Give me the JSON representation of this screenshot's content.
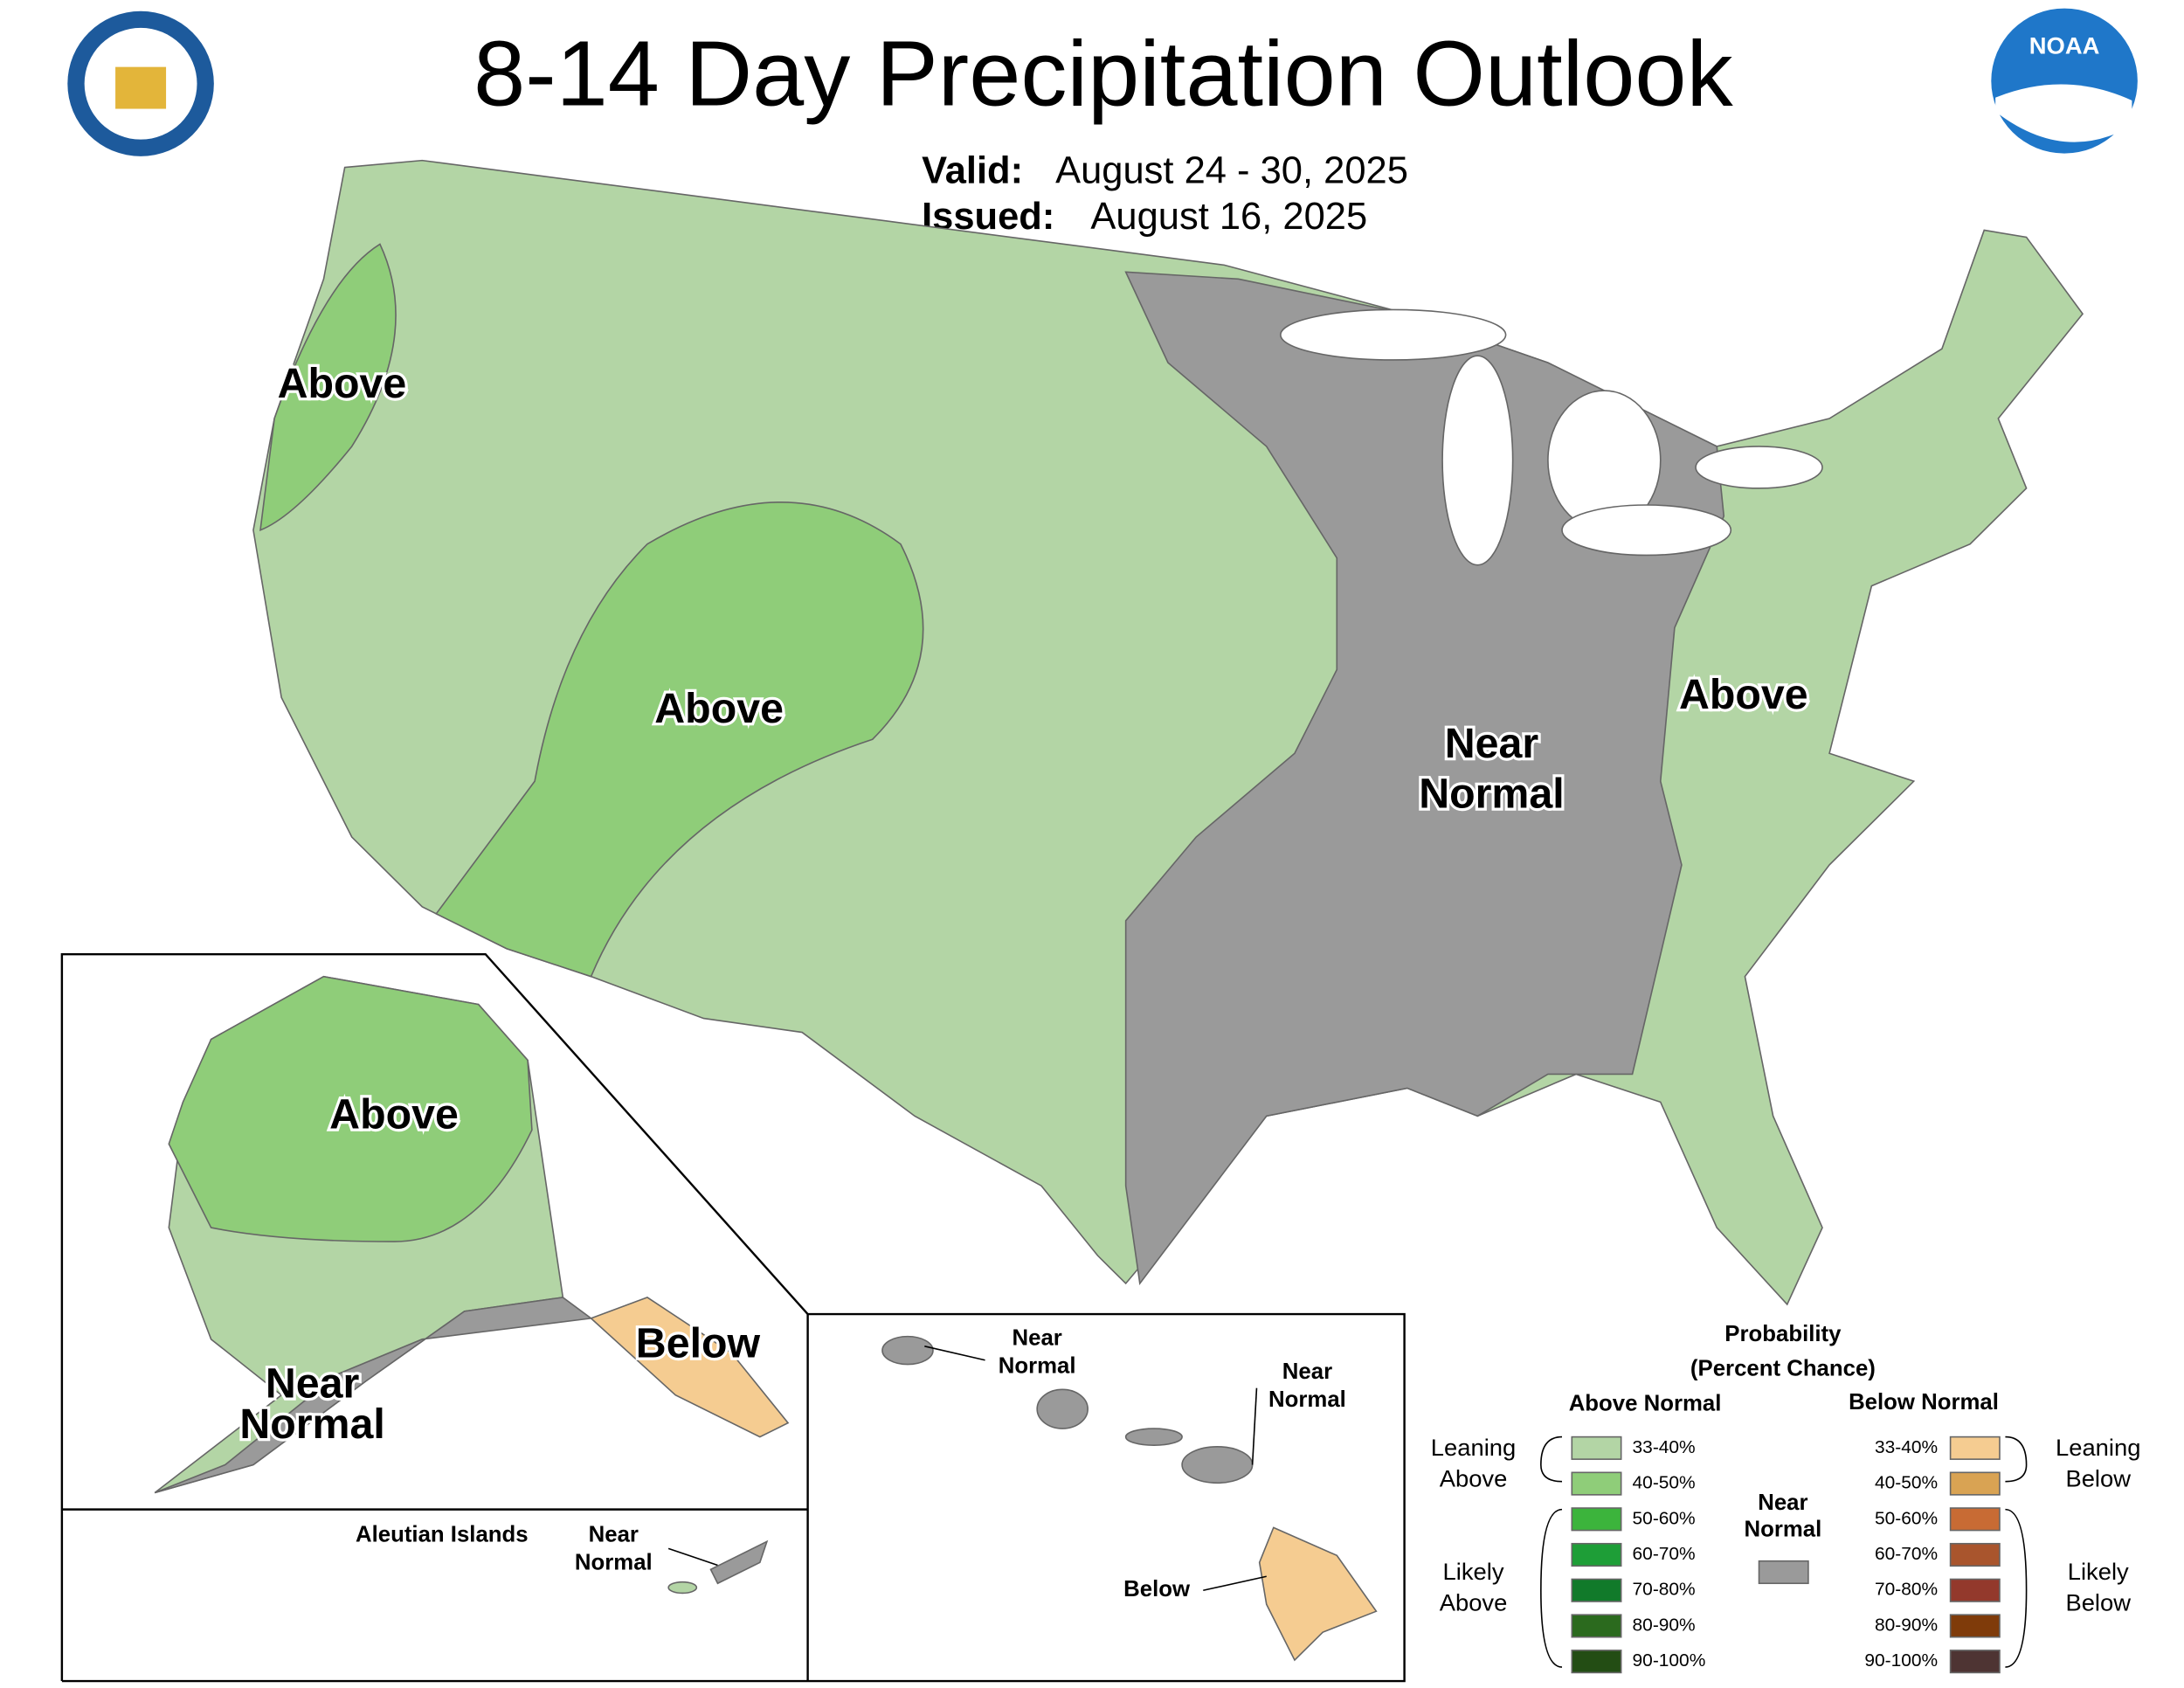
{
  "header": {
    "title": "8-14 Day Precipitation Outlook",
    "valid_label": "Valid:",
    "valid": "August 24 - 30, 2025",
    "issued_label": "Issued:",
    "issued": "August 16, 2025"
  },
  "logos": {
    "noaa": "NOAA"
  },
  "map_labels": {
    "conus": [
      [
        "Above"
      ],
      [
        "Above"
      ],
      [
        "Above"
      ],
      [
        "Near",
        "Normal"
      ]
    ],
    "alaska": [
      [
        "Above"
      ],
      [
        "Below"
      ],
      [
        "Near",
        "Normal"
      ]
    ],
    "hawaii": [
      [
        "Near",
        "Normal"
      ],
      [
        "Near",
        "Normal"
      ],
      [
        "Below"
      ]
    ],
    "aleutian_title": "Aleutian Islands",
    "aleutian": [
      [
        "Near",
        "Normal"
      ]
    ]
  },
  "legend": {
    "title": "Probability",
    "subtitle": "(Percent Chance)",
    "above_header": "Above Normal",
    "below_header": "Below Normal",
    "near_normal": [
      "Near",
      "Normal"
    ],
    "near_color": "#9a9a9a",
    "above": [
      {
        "range": "33-40%",
        "color": "#b3d5a5"
      },
      {
        "range": "40-50%",
        "color": "#8fcd79"
      },
      {
        "range": "50-60%",
        "color": "#3cb43c"
      },
      {
        "range": "60-70%",
        "color": "#1e9e37"
      },
      {
        "range": "70-80%",
        "color": "#117a2a"
      },
      {
        "range": "80-90%",
        "color": "#2b6a1e"
      },
      {
        "range": "90-100%",
        "color": "#234d14"
      }
    ],
    "below": [
      {
        "range": "33-40%",
        "color": "#f5cc91"
      },
      {
        "range": "40-50%",
        "color": "#d9a353"
      },
      {
        "range": "50-60%",
        "color": "#c86b34"
      },
      {
        "range": "60-70%",
        "color": "#a9552d"
      },
      {
        "range": "70-80%",
        "color": "#93392c"
      },
      {
        "range": "80-90%",
        "color": "#7f3b0a"
      },
      {
        "range": "90-100%",
        "color": "#4e3433"
      }
    ],
    "groups": {
      "leaning_above": [
        "Leaning",
        "Above"
      ],
      "likely_above": [
        "Likely",
        "Above"
      ],
      "leaning_below": [
        "Leaning",
        "Below"
      ],
      "likely_below": [
        "Likely",
        "Below"
      ]
    }
  }
}
